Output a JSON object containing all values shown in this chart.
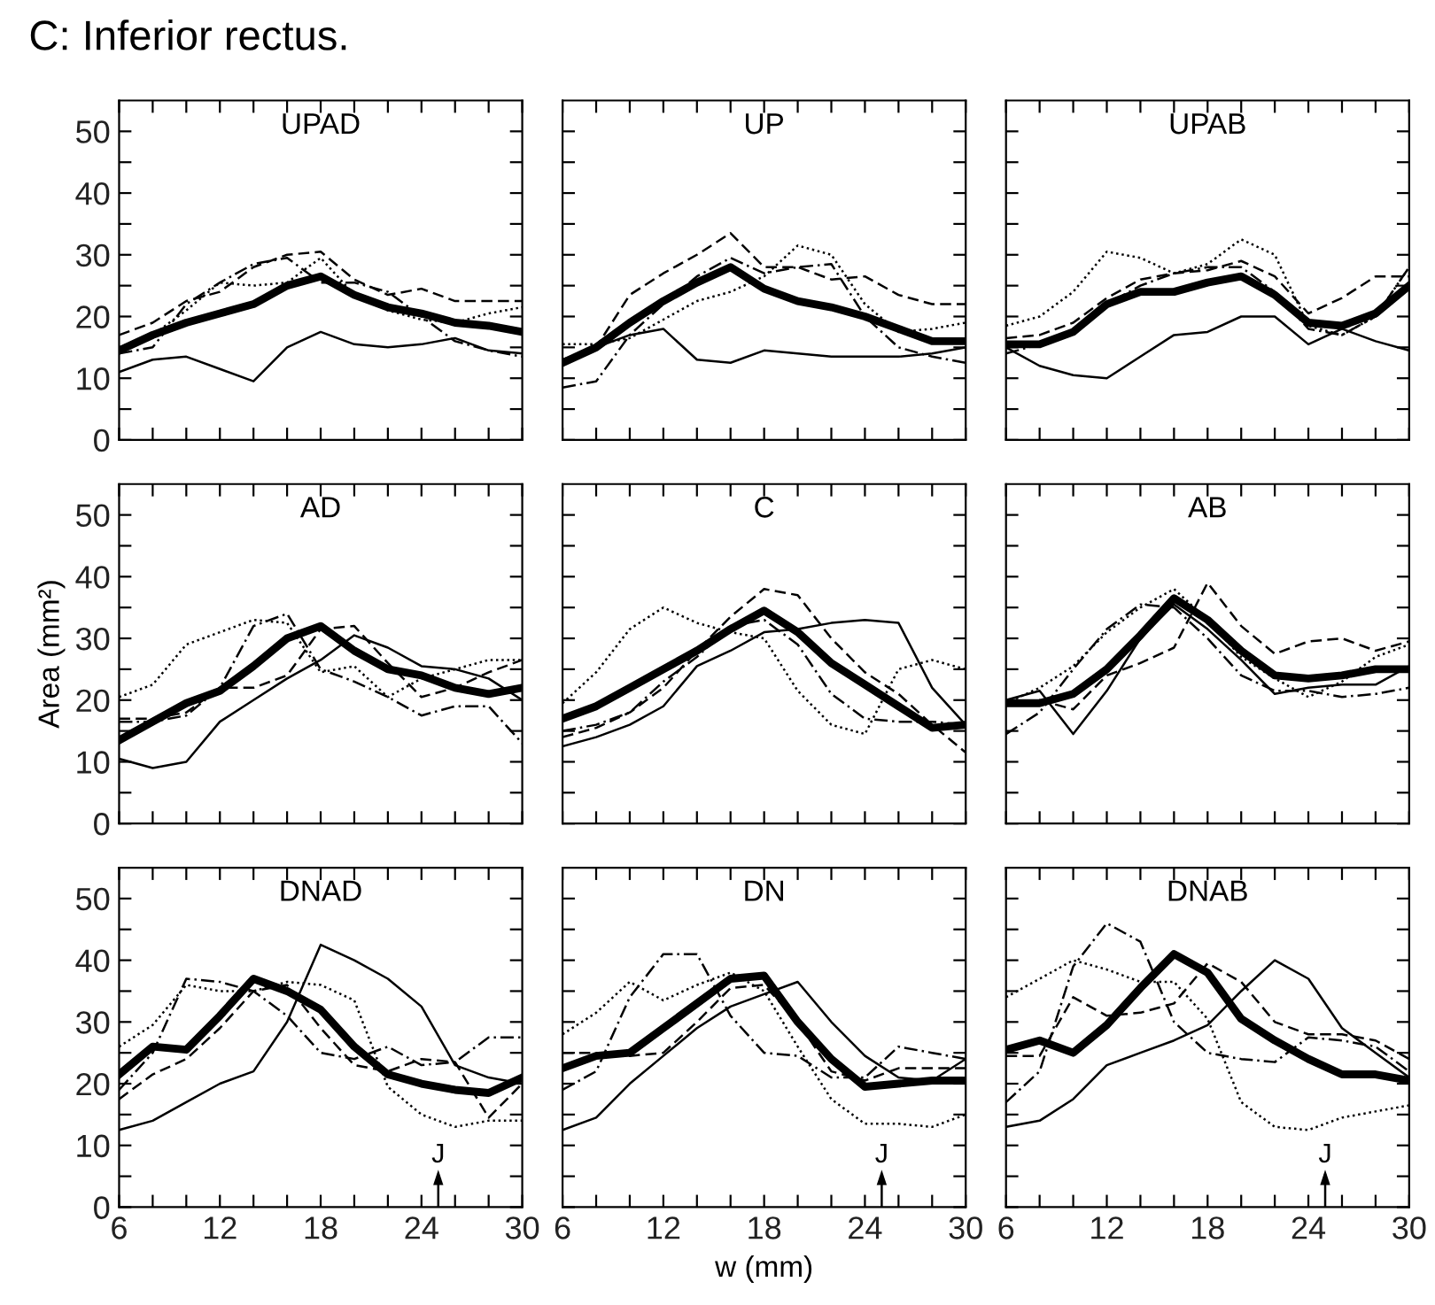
{
  "chart_data": [
    {
      "type": "line",
      "title": "UPAD",
      "annotations": [
        "C: Inferior rectus."
      ],
      "x": [
        6,
        8,
        10,
        12,
        14,
        16,
        18,
        20,
        22,
        24,
        26,
        28,
        30
      ],
      "xlim": [
        6,
        30
      ],
      "ylim": [
        0,
        55
      ],
      "xticks": [
        6,
        {
          "value": 8,
          "label": null
        },
        {
          "value": 10,
          "label": null
        },
        12,
        {
          "value": 14,
          "label": null
        },
        {
          "value": 16,
          "label": null
        },
        18,
        {
          "value": 20,
          "label": null
        },
        {
          "value": 22,
          "label": null
        },
        24,
        {
          "value": 26,
          "label": null
        },
        {
          "value": 28,
          "label": null
        },
        30
      ],
      "yticks": [
        0,
        {
          "value": 5,
          "label": null
        },
        10,
        {
          "value": 15,
          "label": null
        },
        20,
        {
          "value": 25,
          "label": null
        },
        30,
        {
          "value": 35,
          "label": null
        },
        40,
        {
          "value": 45,
          "label": null
        },
        50
      ],
      "tick_labels": "y",
      "grid": false,
      "legend": false,
      "series": [
        {
          "color": "#000000",
          "line_style": "solid",
          "values": [
            14.5,
            17,
            19,
            20.5,
            22,
            25,
            26.5,
            23.5,
            21.5,
            20.5,
            19,
            18.5,
            17.5
          ]
        },
        {
          "color": "#000000",
          "line_style": "solid",
          "values": [
            11,
            13,
            13.5,
            11.5,
            9.5,
            15,
            17.5,
            15.5,
            15,
            15.5,
            16.5,
            14.5,
            14
          ]
        },
        {
          "color": "#000000",
          "line_style": "dashed",
          "values": [
            17,
            19,
            22.5,
            24,
            28,
            30,
            30.5,
            26,
            23.5,
            24.5,
            22.5,
            22.5,
            22.5
          ]
        },
        {
          "color": "#000000",
          "line_style": "dotted",
          "values": [
            15,
            17,
            21,
            25.5,
            25,
            25.5,
            29.5,
            23.5,
            21,
            19.5,
            19,
            20.5,
            21.5
          ]
        },
        {
          "color": "#000000",
          "line_style": "dashdot",
          "values": [
            14,
            15,
            22,
            25.5,
            28.5,
            29.5,
            25.5,
            25.5,
            24,
            20,
            16,
            14.5,
            13.5
          ]
        }
      ]
    },
    {
      "type": "line",
      "title": "UP",
      "x": [
        6,
        8,
        10,
        12,
        14,
        16,
        18,
        20,
        22,
        24,
        26,
        28,
        30
      ],
      "xlim": [
        6,
        30
      ],
      "ylim": [
        0,
        55
      ],
      "xticks": [
        6,
        {
          "value": 8,
          "label": null
        },
        {
          "value": 10,
          "label": null
        },
        12,
        {
          "value": 14,
          "label": null
        },
        {
          "value": 16,
          "label": null
        },
        18,
        {
          "value": 20,
          "label": null
        },
        {
          "value": 22,
          "label": null
        },
        24,
        {
          "value": 26,
          "label": null
        },
        {
          "value": 28,
          "label": null
        },
        30
      ],
      "yticks": [
        0,
        {
          "value": 5,
          "label": null
        },
        10,
        {
          "value": 15,
          "label": null
        },
        20,
        {
          "value": 25,
          "label": null
        },
        30,
        {
          "value": 35,
          "label": null
        },
        40,
        {
          "value": 45,
          "label": null
        },
        50
      ],
      "tick_labels": false,
      "grid": false,
      "legend": false,
      "series": [
        {
          "color": "#000000",
          "line_style": "solid",
          "values": [
            12.5,
            15,
            19,
            22.5,
            25.5,
            28,
            24.5,
            22.5,
            21.5,
            20,
            18,
            16,
            16
          ]
        },
        {
          "color": "#000000",
          "line_style": "solid",
          "values": [
            13,
            15,
            17,
            18,
            13,
            12.5,
            14.5,
            14,
            13.5,
            13.5,
            13.5,
            14,
            15
          ]
        },
        {
          "color": "#000000",
          "line_style": "dashed",
          "values": [
            13,
            15,
            23.5,
            27,
            30,
            33.5,
            28,
            28,
            26,
            26.5,
            23.5,
            22,
            22
          ]
        },
        {
          "color": "#000000",
          "line_style": "dotted",
          "values": [
            15.5,
            15.5,
            16.5,
            19.5,
            22.5,
            24,
            26.5,
            31.5,
            30,
            22,
            17.5,
            18,
            19
          ]
        },
        {
          "color": "#000000",
          "line_style": "dashdot",
          "values": [
            8.5,
            9.5,
            17,
            22,
            26.5,
            29.5,
            27,
            28,
            28.5,
            20,
            15,
            13.5,
            12.5
          ]
        }
      ]
    },
    {
      "type": "line",
      "title": "UPAB",
      "x": [
        6,
        8,
        10,
        12,
        14,
        16,
        18,
        20,
        22,
        24,
        26,
        28,
        30
      ],
      "xlim": [
        6,
        30
      ],
      "ylim": [
        0,
        55
      ],
      "xticks": [
        6,
        {
          "value": 8,
          "label": null
        },
        {
          "value": 10,
          "label": null
        },
        12,
        {
          "value": 14,
          "label": null
        },
        {
          "value": 16,
          "label": null
        },
        18,
        {
          "value": 20,
          "label": null
        },
        {
          "value": 22,
          "label": null
        },
        24,
        {
          "value": 26,
          "label": null
        },
        {
          "value": 28,
          "label": null
        },
        30
      ],
      "yticks": [
        0,
        {
          "value": 5,
          "label": null
        },
        10,
        {
          "value": 15,
          "label": null
        },
        20,
        {
          "value": 25,
          "label": null
        },
        30,
        {
          "value": 35,
          "label": null
        },
        40,
        {
          "value": 45,
          "label": null
        },
        50
      ],
      "tick_labels": false,
      "grid": false,
      "legend": false,
      "series": [
        {
          "color": "#000000",
          "line_style": "solid",
          "values": [
            15.5,
            15.5,
            17.5,
            22,
            24,
            24,
            25.5,
            26.5,
            23.5,
            19,
            18.5,
            20.5,
            25
          ]
        },
        {
          "color": "#000000",
          "line_style": "solid",
          "values": [
            15,
            12,
            10.5,
            10,
            13.5,
            17,
            17.5,
            20,
            20,
            15.5,
            18,
            16,
            14.5
          ]
        },
        {
          "color": "#000000",
          "line_style": "dashed",
          "values": [
            16.5,
            17,
            19,
            23,
            26,
            27,
            27.5,
            29,
            26.5,
            20.5,
            23,
            26.5,
            26.5
          ]
        },
        {
          "color": "#000000",
          "line_style": "dotted",
          "values": [
            18.5,
            20,
            24,
            30.5,
            29.5,
            27,
            28.5,
            32.5,
            30,
            18.5,
            17,
            20,
            28
          ]
        },
        {
          "color": "#000000",
          "line_style": "dashdot",
          "values": [
            14,
            15.5,
            17.5,
            22,
            25,
            27,
            28,
            28,
            24,
            18,
            17,
            20,
            28
          ]
        }
      ]
    },
    {
      "type": "line",
      "title": "AD",
      "ylabel": "Area (mm²)",
      "x": [
        6,
        8,
        10,
        12,
        14,
        16,
        18,
        20,
        22,
        24,
        26,
        28,
        30
      ],
      "xlim": [
        6,
        30
      ],
      "ylim": [
        0,
        55
      ],
      "xticks": [
        6,
        {
          "value": 8,
          "label": null
        },
        {
          "value": 10,
          "label": null
        },
        12,
        {
          "value": 14,
          "label": null
        },
        {
          "value": 16,
          "label": null
        },
        18,
        {
          "value": 20,
          "label": null
        },
        {
          "value": 22,
          "label": null
        },
        24,
        {
          "value": 26,
          "label": null
        },
        {
          "value": 28,
          "label": null
        },
        30
      ],
      "yticks": [
        0,
        {
          "value": 5,
          "label": null
        },
        10,
        {
          "value": 15,
          "label": null
        },
        20,
        {
          "value": 25,
          "label": null
        },
        30,
        {
          "value": 35,
          "label": null
        },
        40,
        {
          "value": 45,
          "label": null
        },
        50
      ],
      "tick_labels": "y",
      "grid": false,
      "legend": false,
      "series": [
        {
          "color": "#000000",
          "line_style": "solid",
          "values": [
            13.5,
            16.5,
            19.5,
            21.5,
            25.5,
            30,
            32,
            28,
            25,
            24,
            22,
            21,
            22
          ]
        },
        {
          "color": "#000000",
          "line_style": "solid",
          "values": [
            10.5,
            9,
            10,
            16.5,
            20,
            23.5,
            26.5,
            30.5,
            28.5,
            25.5,
            25,
            23.5,
            20
          ]
        },
        {
          "color": "#000000",
          "line_style": "dashed",
          "values": [
            17,
            17,
            18,
            22,
            22,
            24,
            31.5,
            32,
            26,
            20.5,
            22,
            24.5,
            26.5
          ]
        },
        {
          "color": "#000000",
          "line_style": "dotted",
          "values": [
            20.5,
            22.5,
            29,
            31,
            33,
            32.5,
            24.5,
            25.5,
            20.5,
            23.5,
            25,
            26.5,
            26.5
          ]
        },
        {
          "color": "#000000",
          "line_style": "dashdot",
          "values": [
            16.5,
            16.5,
            17.5,
            22,
            32,
            34,
            25,
            23,
            20.5,
            17.5,
            19,
            19,
            13
          ]
        }
      ]
    },
    {
      "type": "line",
      "title": "C",
      "x": [
        6,
        8,
        10,
        12,
        14,
        16,
        18,
        20,
        22,
        24,
        26,
        28,
        30
      ],
      "xlim": [
        6,
        30
      ],
      "ylim": [
        0,
        55
      ],
      "xticks": [
        6,
        {
          "value": 8,
          "label": null
        },
        {
          "value": 10,
          "label": null
        },
        12,
        {
          "value": 14,
          "label": null
        },
        {
          "value": 16,
          "label": null
        },
        18,
        {
          "value": 20,
          "label": null
        },
        {
          "value": 22,
          "label": null
        },
        24,
        {
          "value": 26,
          "label": null
        },
        {
          "value": 28,
          "label": null
        },
        30
      ],
      "yticks": [
        0,
        {
          "value": 5,
          "label": null
        },
        10,
        {
          "value": 15,
          "label": null
        },
        20,
        {
          "value": 25,
          "label": null
        },
        30,
        {
          "value": 35,
          "label": null
        },
        40,
        {
          "value": 45,
          "label": null
        },
        50
      ],
      "tick_labels": false,
      "grid": false,
      "legend": false,
      "series": [
        {
          "color": "#000000",
          "line_style": "solid",
          "values": [
            17,
            19,
            22,
            25,
            28,
            31.5,
            34.5,
            31,
            26,
            22.5,
            19,
            15.5,
            16
          ]
        },
        {
          "color": "#000000",
          "line_style": "solid",
          "values": [
            12.5,
            14,
            16,
            19,
            25.5,
            28,
            31,
            31.5,
            32.5,
            33,
            32.5,
            22,
            16
          ]
        },
        {
          "color": "#000000",
          "line_style": "dashed",
          "values": [
            14,
            15.5,
            18,
            22,
            28,
            33.5,
            38,
            37,
            30,
            24.5,
            21,
            16,
            11.5
          ]
        },
        {
          "color": "#000000",
          "line_style": "dotted",
          "values": [
            19.5,
            24.5,
            31.5,
            35,
            32.5,
            31,
            30,
            21.5,
            16,
            14.5,
            25,
            26.5,
            25
          ]
        },
        {
          "color": "#000000",
          "line_style": "dashdot",
          "values": [
            15,
            16,
            18,
            23,
            27,
            32,
            33,
            29,
            21,
            17,
            16.5,
            16.5,
            16
          ]
        }
      ]
    },
    {
      "type": "line",
      "title": "AB",
      "x": [
        6,
        8,
        10,
        12,
        14,
        16,
        18,
        20,
        22,
        24,
        26,
        28,
        30
      ],
      "xlim": [
        6,
        30
      ],
      "ylim": [
        0,
        55
      ],
      "xticks": [
        6,
        {
          "value": 8,
          "label": null
        },
        {
          "value": 10,
          "label": null
        },
        12,
        {
          "value": 14,
          "label": null
        },
        {
          "value": 16,
          "label": null
        },
        18,
        {
          "value": 20,
          "label": null
        },
        {
          "value": 22,
          "label": null
        },
        24,
        {
          "value": 26,
          "label": null
        },
        {
          "value": 28,
          "label": null
        },
        30
      ],
      "yticks": [
        0,
        {
          "value": 5,
          "label": null
        },
        10,
        {
          "value": 15,
          "label": null
        },
        20,
        {
          "value": 25,
          "label": null
        },
        30,
        {
          "value": 35,
          "label": null
        },
        40,
        {
          "value": 45,
          "label": null
        },
        50
      ],
      "tick_labels": false,
      "grid": false,
      "legend": false,
      "series": [
        {
          "color": "#000000",
          "line_style": "solid",
          "values": [
            19.5,
            19.5,
            21,
            25,
            30.5,
            36.5,
            33,
            28,
            24,
            23.5,
            24,
            25,
            25
          ]
        },
        {
          "color": "#000000",
          "line_style": "solid",
          "values": [
            20,
            21.5,
            14.5,
            21.5,
            30,
            35.5,
            31.5,
            26.5,
            21,
            22,
            22.5,
            22.5,
            25.5
          ]
        },
        {
          "color": "#000000",
          "line_style": "dashed",
          "values": [
            19.5,
            20,
            18.5,
            24,
            26,
            28.5,
            39,
            32,
            27.5,
            29.5,
            30,
            28,
            29.5
          ]
        },
        {
          "color": "#000000",
          "line_style": "dotted",
          "values": [
            19.5,
            22,
            25.5,
            31,
            35,
            38,
            33,
            27,
            23.5,
            20.5,
            23,
            27,
            29
          ]
        },
        {
          "color": "#000000",
          "line_style": "dashdot",
          "values": [
            14.5,
            18,
            25,
            31.5,
            35.5,
            35,
            30,
            24,
            21.5,
            21.5,
            20.5,
            21,
            22
          ]
        }
      ]
    },
    {
      "type": "line",
      "title": "DNAD",
      "ref_lines": [
        {
          "axis": "x",
          "value": 25,
          "label": "J"
        }
      ],
      "x": [
        6,
        8,
        10,
        12,
        14,
        16,
        18,
        20,
        22,
        24,
        26,
        28,
        30
      ],
      "xlim": [
        6,
        30
      ],
      "ylim": [
        0,
        55
      ],
      "xticks": [
        6,
        {
          "value": 8,
          "label": null
        },
        {
          "value": 10,
          "label": null
        },
        12,
        {
          "value": 14,
          "label": null
        },
        {
          "value": 16,
          "label": null
        },
        18,
        {
          "value": 20,
          "label": null
        },
        {
          "value": 22,
          "label": null
        },
        24,
        {
          "value": 26,
          "label": null
        },
        {
          "value": 28,
          "label": null
        },
        30
      ],
      "yticks": [
        0,
        {
          "value": 5,
          "label": null
        },
        10,
        {
          "value": 15,
          "label": null
        },
        20,
        {
          "value": 25,
          "label": null
        },
        30,
        {
          "value": 35,
          "label": null
        },
        40,
        {
          "value": 45,
          "label": null
        },
        50
      ],
      "grid": false,
      "legend": false,
      "series": [
        {
          "color": "#000000",
          "line_style": "solid",
          "values": [
            21.5,
            26,
            25.5,
            31,
            37,
            35,
            32,
            26,
            21.5,
            20,
            19,
            18.5,
            21
          ]
        },
        {
          "color": "#000000",
          "line_style": "solid",
          "values": [
            12.5,
            14,
            17,
            20,
            22,
            30,
            42.5,
            40,
            37,
            32.5,
            23,
            21,
            20
          ]
        },
        {
          "color": "#000000",
          "line_style": "dashed",
          "values": [
            17.5,
            21.5,
            24,
            29,
            35,
            36,
            29,
            23,
            22,
            24,
            23.5,
            14.5,
            20
          ]
        },
        {
          "color": "#000000",
          "line_style": "dotted",
          "values": [
            26,
            29.5,
            36,
            35,
            35,
            36.5,
            36,
            33.5,
            19.5,
            15,
            13,
            14,
            14
          ]
        },
        {
          "color": "#000000",
          "line_style": "dashdot",
          "values": [
            19,
            25,
            37,
            36.5,
            35,
            31,
            25,
            24,
            26,
            23,
            23.5,
            27.5,
            27.5
          ]
        }
      ]
    },
    {
      "type": "line",
      "title": "DN",
      "xlabel": "w (mm)",
      "ref_lines": [
        {
          "axis": "x",
          "value": 25,
          "label": "J"
        }
      ],
      "x": [
        6,
        8,
        10,
        12,
        14,
        16,
        18,
        20,
        22,
        24,
        26,
        28,
        30
      ],
      "xlim": [
        6,
        30
      ],
      "ylim": [
        0,
        55
      ],
      "xticks": [
        6,
        {
          "value": 8,
          "label": null
        },
        {
          "value": 10,
          "label": null
        },
        12,
        {
          "value": 14,
          "label": null
        },
        {
          "value": 16,
          "label": null
        },
        18,
        {
          "value": 20,
          "label": null
        },
        {
          "value": 22,
          "label": null
        },
        24,
        {
          "value": 26,
          "label": null
        },
        {
          "value": 28,
          "label": null
        },
        30
      ],
      "yticks": [
        0,
        {
          "value": 5,
          "label": null
        },
        10,
        {
          "value": 15,
          "label": null
        },
        20,
        {
          "value": 25,
          "label": null
        },
        30,
        {
          "value": 35,
          "label": null
        },
        40,
        {
          "value": 45,
          "label": null
        },
        50
      ],
      "tick_labels": "x",
      "grid": false,
      "legend": false,
      "series": [
        {
          "color": "#000000",
          "line_style": "solid",
          "values": [
            22.5,
            24.5,
            25,
            29,
            33,
            37,
            37.5,
            30,
            24,
            19.5,
            20,
            20.5,
            20.5
          ]
        },
        {
          "color": "#000000",
          "line_style": "solid",
          "values": [
            12.5,
            14.5,
            20,
            24.5,
            29,
            32.5,
            34.5,
            36.5,
            30,
            24.5,
            21,
            20.5,
            24
          ]
        },
        {
          "color": "#000000",
          "line_style": "dashed",
          "values": [
            25,
            25,
            24.5,
            25,
            30,
            35.5,
            36,
            30,
            22,
            20.5,
            22.5,
            22.5,
            22.5
          ]
        },
        {
          "color": "#000000",
          "line_style": "dotted",
          "values": [
            28,
            31.5,
            36.5,
            33.5,
            36,
            38,
            35,
            26,
            17.5,
            13.5,
            13.5,
            13,
            15
          ]
        },
        {
          "color": "#000000",
          "line_style": "dashdot",
          "values": [
            19,
            22,
            34,
            41,
            41,
            31,
            25,
            24.5,
            21,
            21,
            26,
            25,
            24
          ]
        }
      ]
    },
    {
      "type": "line",
      "title": "DNAB",
      "ref_lines": [
        {
          "axis": "x",
          "value": 25,
          "label": "J"
        }
      ],
      "x": [
        6,
        8,
        10,
        12,
        14,
        16,
        18,
        20,
        22,
        24,
        26,
        28,
        30
      ],
      "xlim": [
        6,
        30
      ],
      "ylim": [
        0,
        55
      ],
      "xticks": [
        6,
        {
          "value": 8,
          "label": null
        },
        {
          "value": 10,
          "label": null
        },
        12,
        {
          "value": 14,
          "label": null
        },
        {
          "value": 16,
          "label": null
        },
        18,
        {
          "value": 20,
          "label": null
        },
        {
          "value": 22,
          "label": null
        },
        24,
        {
          "value": 26,
          "label": null
        },
        {
          "value": 28,
          "label": null
        },
        30
      ],
      "yticks": [
        0,
        {
          "value": 5,
          "label": null
        },
        10,
        {
          "value": 15,
          "label": null
        },
        20,
        {
          "value": 25,
          "label": null
        },
        30,
        {
          "value": 35,
          "label": null
        },
        40,
        {
          "value": 45,
          "label": null
        },
        50
      ],
      "tick_labels": "x",
      "grid": false,
      "legend": false,
      "series": [
        {
          "color": "#000000",
          "line_style": "solid",
          "values": [
            25.5,
            27,
            25,
            29.5,
            35.5,
            41,
            38,
            30.5,
            27,
            24,
            21.5,
            21.5,
            20.5
          ]
        },
        {
          "color": "#000000",
          "line_style": "solid",
          "values": [
            13,
            14,
            17.5,
            23,
            25,
            27,
            29.5,
            35,
            40,
            37,
            29,
            25,
            21
          ]
        },
        {
          "color": "#000000",
          "line_style": "dashed",
          "values": [
            24.5,
            24.5,
            34,
            31,
            31.5,
            33,
            39.5,
            36.5,
            30,
            28,
            28,
            27,
            24
          ]
        },
        {
          "color": "#000000",
          "line_style": "dotted",
          "values": [
            34,
            37,
            40,
            38.5,
            36.5,
            36.5,
            30.5,
            17,
            13,
            12.5,
            14.5,
            15.5,
            16.5
          ]
        },
        {
          "color": "#000000",
          "line_style": "dashdot",
          "values": [
            17,
            22,
            39,
            46,
            43,
            30,
            25,
            24,
            23.5,
            27.5,
            27,
            26,
            22
          ]
        }
      ]
    }
  ]
}
